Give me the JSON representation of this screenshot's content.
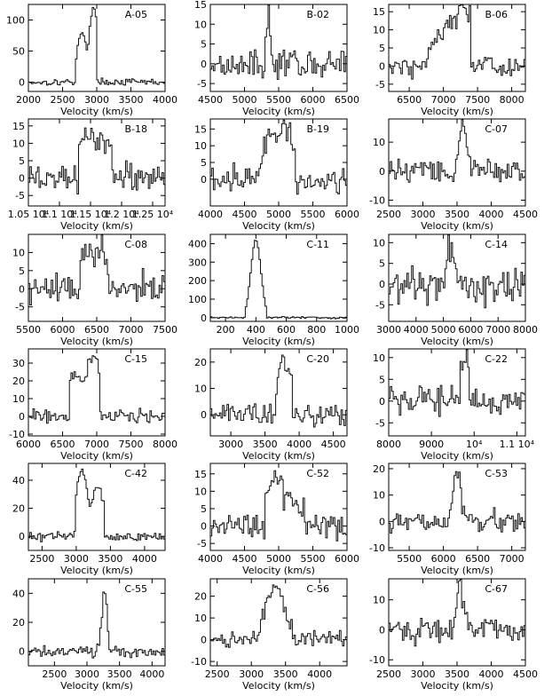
{
  "chart_data": [
    {
      "type": "line",
      "title": "A-05",
      "xlabel": "Velocity (km/s)",
      "ylabel": "",
      "xlim": [
        2000,
        4000
      ],
      "ylim": [
        -15,
        125
      ],
      "xticks": [
        2000,
        2500,
        3000,
        3500,
        4000
      ],
      "xtick_labels": [
        "2000",
        "2500",
        "3000",
        "3500",
        "4000"
      ],
      "yticks": [
        0,
        50,
        100
      ],
      "ytick_labels": [
        "0",
        "50",
        "100"
      ],
      "peaks": [
        {
          "x": 2780,
          "y": 80
        },
        {
          "x": 2960,
          "y": 122
        }
      ],
      "profile_range": [
        2700,
        3000
      ],
      "noise": 4
    },
    {
      "type": "line",
      "title": "B-02",
      "xlabel": "Velocity (km/s)",
      "ylabel": "",
      "xlim": [
        4500,
        6500
      ],
      "ylim": [
        -7,
        15
      ],
      "xticks": [
        4500,
        5000,
        5500,
        6000,
        6500
      ],
      "xtick_labels": [
        "4500",
        "5000",
        "5500",
        "6000",
        "6500"
      ],
      "yticks": [
        -5,
        0,
        5,
        10,
        15
      ],
      "ytick_labels": [
        "-5",
        "0",
        "5",
        "10",
        "15"
      ],
      "peaks": [
        {
          "x": 5350,
          "y": 13
        }
      ],
      "profile_range": [
        5300,
        5420
      ],
      "noise": 2.5
    },
    {
      "type": "line",
      "title": "B-06",
      "xlabel": "Velocity (km/s)",
      "ylabel": "",
      "xlim": [
        6200,
        8200
      ],
      "ylim": [
        -7,
        17
      ],
      "xticks": [
        6500,
        7000,
        7500,
        8000
      ],
      "xtick_labels": [
        "6500",
        "7000",
        "7500",
        "8000"
      ],
      "yticks": [
        -5,
        0,
        5,
        10,
        15
      ],
      "ytick_labels": [
        "-5",
        "0",
        "5",
        "10",
        "15"
      ],
      "peaks": [
        {
          "x": 7050,
          "y": 12
        },
        {
          "x": 7280,
          "y": 16
        }
      ],
      "profile_range": [
        6700,
        7400
      ],
      "noise": 2.5
    },
    {
      "type": "line",
      "title": "B-18",
      "xlabel": "Velocity (km/s)",
      "ylabel": "",
      "xlim": [
        10500,
        12700
      ],
      "ylim": [
        -8,
        17
      ],
      "xticks": [
        10500,
        11000,
        11500,
        12000,
        12500
      ],
      "xtick_labels": [
        "1.05 10⁴",
        "1.1 10⁴",
        "1.15 10⁴",
        "1.2 10⁴",
        "1.25 10⁴"
      ],
      "yticks": [
        -5,
        0,
        5,
        10,
        15
      ],
      "ytick_labels": [
        "-5",
        "0",
        "5",
        "10",
        "15"
      ],
      "peaks": [
        {
          "x": 11450,
          "y": 13
        },
        {
          "x": 11750,
          "y": 11
        }
      ],
      "profile_range": [
        11300,
        11850
      ],
      "noise": 3
    },
    {
      "type": "line",
      "title": "B-19",
      "xlabel": "Velocity (km/s)",
      "ylabel": "",
      "xlim": [
        4000,
        6000
      ],
      "ylim": [
        -8,
        18
      ],
      "xticks": [
        4000,
        4500,
        5000,
        5500,
        6000
      ],
      "xtick_labels": [
        "4000",
        "4500",
        "5000",
        "5500",
        "6000"
      ],
      "yticks": [
        0,
        5,
        10,
        15
      ],
      "ytick_labels": [
        "0",
        "5",
        "10",
        "15"
      ],
      "peaks": [
        {
          "x": 4900,
          "y": 15
        },
        {
          "x": 5100,
          "y": 16
        }
      ],
      "profile_range": [
        4700,
        5250
      ],
      "noise": 3
    },
    {
      "type": "line",
      "title": "C-07",
      "xlabel": "Velocity (km/s)",
      "ylabel": "",
      "xlim": [
        2500,
        4500
      ],
      "ylim": [
        -12,
        18
      ],
      "xticks": [
        2500,
        3000,
        3500,
        4000,
        4500
      ],
      "xtick_labels": [
        "2500",
        "3000",
        "3500",
        "4000",
        "4500"
      ],
      "yticks": [
        -10,
        0,
        10
      ],
      "ytick_labels": [
        "-10",
        "0",
        "10"
      ],
      "peaks": [
        {
          "x": 3600,
          "y": 15
        }
      ],
      "profile_range": [
        3450,
        3700
      ],
      "noise": 3
    },
    {
      "type": "line",
      "title": "C-08",
      "xlabel": "Velocity (km/s)",
      "ylabel": "",
      "xlim": [
        5500,
        7500
      ],
      "ylim": [
        -9,
        15
      ],
      "xticks": [
        5500,
        6000,
        6500,
        7000,
        7500
      ],
      "xtick_labels": [
        "5500",
        "6000",
        "6500",
        "7000",
        "7500"
      ],
      "yticks": [
        -5,
        0,
        5,
        10
      ],
      "ytick_labels": [
        "-5",
        "0",
        "5",
        "10"
      ],
      "peaks": [
        {
          "x": 6350,
          "y": 12
        },
        {
          "x": 6550,
          "y": 11
        }
      ],
      "profile_range": [
        6250,
        6650
      ],
      "noise": 3
    },
    {
      "type": "line",
      "title": "C-11",
      "xlabel": "Velocity (km/s)",
      "ylabel": "",
      "xlim": [
        100,
        1000
      ],
      "ylim": [
        -20,
        450
      ],
      "xticks": [
        200,
        400,
        600,
        800,
        1000
      ],
      "xtick_labels": [
        "200",
        "400",
        "600",
        "800",
        "1000"
      ],
      "yticks": [
        0,
        100,
        200,
        300,
        400
      ],
      "ytick_labels": [
        "0",
        "100",
        "200",
        "300",
        "400"
      ],
      "peaks": [
        {
          "x": 400,
          "y": 420
        }
      ],
      "profile_range": [
        330,
        470
      ],
      "noise": 4
    },
    {
      "type": "line",
      "title": "C-14",
      "xlabel": "Velocity (km/s)",
      "ylabel": "",
      "xlim": [
        3000,
        8000
      ],
      "ylim": [
        -9,
        12
      ],
      "xticks": [
        3000,
        4000,
        5000,
        6000,
        7000,
        8000
      ],
      "xtick_labels": [
        "3000",
        "4000",
        "5000",
        "6000",
        "7000",
        "8000"
      ],
      "yticks": [
        -5,
        0,
        5,
        10
      ],
      "ytick_labels": [
        "-5",
        "0",
        "5",
        "10"
      ],
      "peaks": [
        {
          "x": 5300,
          "y": 9
        }
      ],
      "profile_range": [
        5000,
        5600
      ],
      "noise": 3.5
    },
    {
      "type": "line",
      "title": "C-15",
      "xlabel": "Velocity (km/s)",
      "ylabel": "",
      "xlim": [
        6000,
        8000
      ],
      "ylim": [
        -11,
        38
      ],
      "xticks": [
        6000,
        6500,
        7000,
        7500,
        8000
      ],
      "xtick_labels": [
        "6000",
        "6500",
        "7000",
        "7500",
        "8000"
      ],
      "yticks": [
        -10,
        0,
        10,
        20,
        30
      ],
      "ytick_labels": [
        "-10",
        "0",
        "10",
        "20",
        "30"
      ],
      "peaks": [
        {
          "x": 6680,
          "y": 25
        },
        {
          "x": 6950,
          "y": 35
        }
      ],
      "profile_range": [
        6600,
        7050
      ],
      "noise": 3
    },
    {
      "type": "line",
      "title": "C-20",
      "xlabel": "Velocity (km/s)",
      "ylabel": "",
      "xlim": [
        2700,
        4700
      ],
      "ylim": [
        -8,
        25
      ],
      "xticks": [
        3000,
        3500,
        4000,
        4500
      ],
      "xtick_labels": [
        "3000",
        "3500",
        "4000",
        "4500"
      ],
      "yticks": [
        0,
        10,
        20
      ],
      "ytick_labels": [
        "0",
        "10",
        "20"
      ],
      "peaks": [
        {
          "x": 3750,
          "y": 23
        },
        {
          "x": 3850,
          "y": 18
        }
      ],
      "profile_range": [
        3650,
        3900
      ],
      "noise": 3
    },
    {
      "type": "line",
      "title": "C-22",
      "xlabel": "Velocity (km/s)",
      "ylabel": "",
      "xlim": [
        8000,
        11200
      ],
      "ylim": [
        -8,
        12
      ],
      "xticks": [
        8000,
        9000,
        10000,
        11000
      ],
      "xtick_labels": [
        "8000",
        "9000",
        "10⁴",
        "1.1 10⁴"
      ],
      "yticks": [
        -5,
        0,
        5,
        10
      ],
      "ytick_labels": [
        "-5",
        "0",
        "5",
        "10"
      ],
      "peaks": [
        {
          "x": 9800,
          "y": 9
        }
      ],
      "profile_range": [
        9600,
        10000
      ],
      "noise": 3
    },
    {
      "type": "line",
      "title": "C-42",
      "xlabel": "Velocity (km/s)",
      "ylabel": "",
      "xlim": [
        2300,
        4300
      ],
      "ylim": [
        -10,
        52
      ],
      "xticks": [
        2500,
        3000,
        3500,
        4000
      ],
      "xtick_labels": [
        "2500",
        "3000",
        "3500",
        "4000"
      ],
      "yticks": [
        0,
        20,
        40
      ],
      "ytick_labels": [
        "0",
        "20",
        "40"
      ],
      "peaks": [
        {
          "x": 3080,
          "y": 46
        },
        {
          "x": 3320,
          "y": 35
        }
      ],
      "profile_range": [
        3000,
        3400
      ],
      "noise": 2.5
    },
    {
      "type": "line",
      "title": "C-52",
      "xlabel": "Velocity (km/s)",
      "ylabel": "",
      "xlim": [
        4000,
        6000
      ],
      "ylim": [
        -7,
        18
      ],
      "xticks": [
        4000,
        4500,
        5000,
        5500,
        6000
      ],
      "xtick_labels": [
        "4000",
        "4500",
        "5000",
        "5500",
        "6000"
      ],
      "yticks": [
        -5,
        0,
        5,
        10,
        15
      ],
      "ytick_labels": [
        "-5",
        "0",
        "5",
        "10",
        "15"
      ],
      "peaks": [
        {
          "x": 4950,
          "y": 14
        },
        {
          "x": 5200,
          "y": 8
        }
      ],
      "profile_range": [
        4800,
        5400
      ],
      "noise": 3
    },
    {
      "type": "line",
      "title": "C-53",
      "xlabel": "Velocity (km/s)",
      "ylabel": "",
      "xlim": [
        5200,
        7200
      ],
      "ylim": [
        -11,
        22
      ],
      "xticks": [
        5500,
        6000,
        6500,
        7000
      ],
      "xtick_labels": [
        "5500",
        "6000",
        "6500",
        "7000"
      ],
      "yticks": [
        -10,
        0,
        10,
        20
      ],
      "ytick_labels": [
        "-10",
        "0",
        "10",
        "20"
      ],
      "peaks": [
        {
          "x": 6200,
          "y": 20
        }
      ],
      "profile_range": [
        6050,
        6300
      ],
      "noise": 3
    },
    {
      "type": "line",
      "title": "C-55",
      "xlabel": "Velocity (km/s)",
      "ylabel": "",
      "xlim": [
        2100,
        4200
      ],
      "ylim": [
        -10,
        50
      ],
      "xticks": [
        2500,
        3000,
        3500,
        4000
      ],
      "xtick_labels": [
        "2500",
        "3000",
        "3500",
        "4000"
      ],
      "yticks": [
        0,
        20,
        40
      ],
      "ytick_labels": [
        "0",
        "20",
        "40"
      ],
      "peaks": [
        {
          "x": 3270,
          "y": 43
        }
      ],
      "profile_range": [
        3180,
        3340
      ],
      "noise": 3
    },
    {
      "type": "line",
      "title": "C-56",
      "xlabel": "Velocity (km/s)",
      "ylabel": "",
      "xlim": [
        2400,
        4400
      ],
      "ylim": [
        -12,
        28
      ],
      "xticks": [
        2500,
        3000,
        3500,
        4000
      ],
      "xtick_labels": [
        "2500",
        "3000",
        "3500",
        "4000"
      ],
      "yticks": [
        -10,
        0,
        10,
        20
      ],
      "ytick_labels": [
        "-10",
        "0",
        "10",
        "20"
      ],
      "peaks": [
        {
          "x": 3350,
          "y": 24
        }
      ],
      "profile_range": [
        3000,
        3600
      ],
      "noise": 3
    },
    {
      "type": "line",
      "title": "C-67",
      "xlabel": "Velocity (km/s)",
      "ylabel": "",
      "xlim": [
        2500,
        4500
      ],
      "ylim": [
        -12,
        17
      ],
      "xticks": [
        2500,
        3000,
        3500,
        4000,
        4500
      ],
      "xtick_labels": [
        "2500",
        "3000",
        "3500",
        "4000",
        "4500"
      ],
      "yticks": [
        -10,
        0,
        10
      ],
      "ytick_labels": [
        "-10",
        "0",
        "10"
      ],
      "peaks": [
        {
          "x": 3550,
          "y": 14
        }
      ],
      "profile_range": [
        3450,
        3650
      ],
      "noise": 3.5
    }
  ]
}
